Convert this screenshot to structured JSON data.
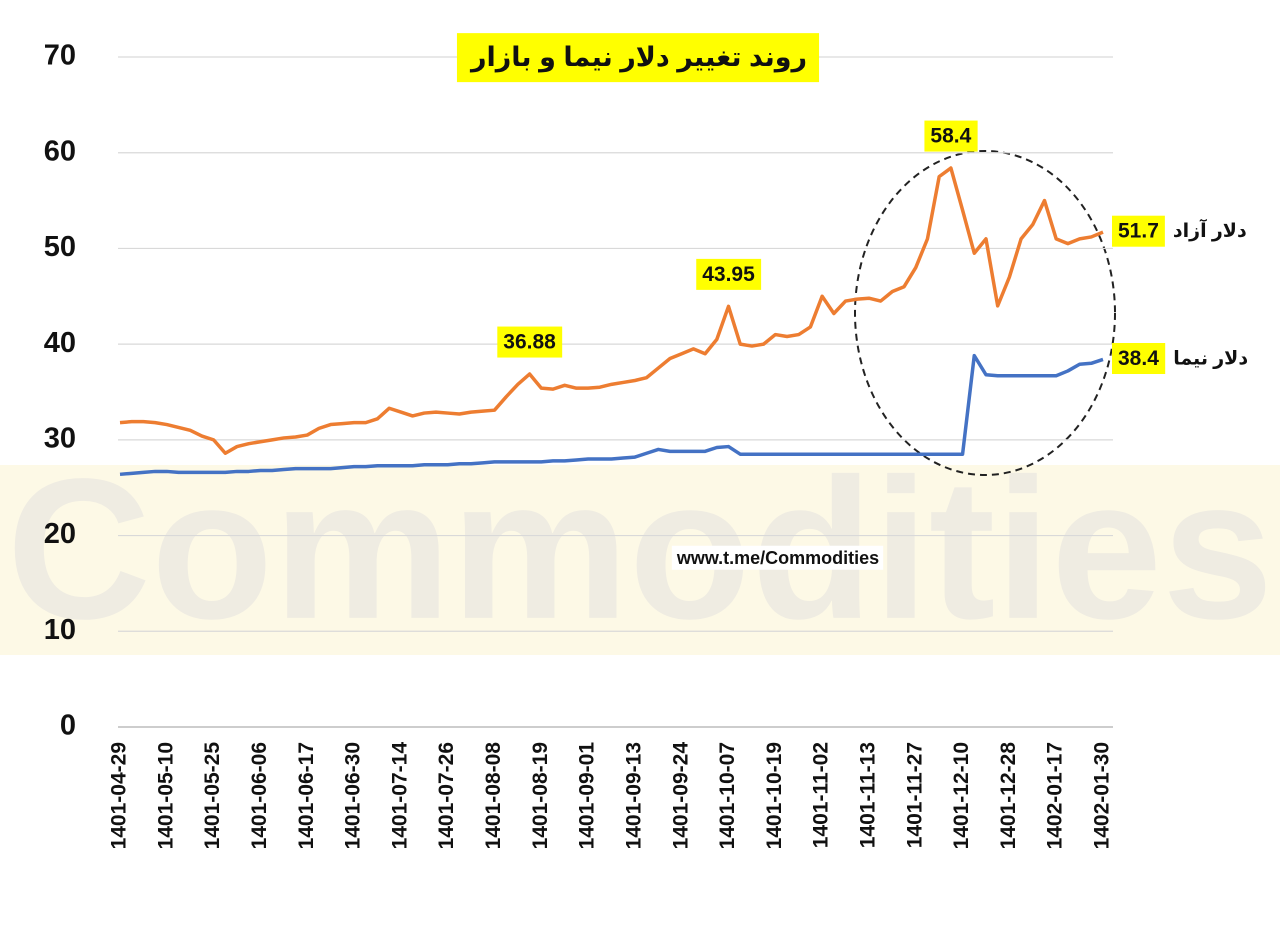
{
  "chart_data": {
    "type": "line",
    "title": "روند تغییر دلار نیما و بازار",
    "source": "www.t.me/Commodities",
    "watermark": "Commodities",
    "categories": [
      "1401-04-29",
      null,
      null,
      null,
      "1401-05-10",
      null,
      null,
      null,
      "1401-05-25",
      null,
      null,
      null,
      "1401-06-06",
      null,
      null,
      null,
      "1401-06-17",
      null,
      null,
      null,
      "1401-06-30",
      null,
      null,
      null,
      "1401-07-14",
      null,
      null,
      null,
      "1401-07-26",
      null,
      null,
      null,
      "1401-08-08",
      null,
      null,
      null,
      "1401-08-19",
      null,
      null,
      null,
      "1401-09-01",
      null,
      null,
      null,
      "1401-09-13",
      null,
      null,
      null,
      "1401-09-24",
      null,
      null,
      null,
      "1401-10-07",
      null,
      null,
      null,
      "1401-10-19",
      null,
      null,
      null,
      "1401-11-02",
      null,
      null,
      null,
      "1401-11-13",
      null,
      null,
      null,
      "1401-11-27",
      null,
      null,
      null,
      "1401-12-10",
      null,
      null,
      null,
      "1401-12-28",
      null,
      null,
      null,
      "1402-01-17",
      null,
      null,
      null,
      "1402-01-30"
    ],
    "series": [
      {
        "name": "دلار نیما",
        "color": "#4472c4",
        "values": [
          26.4,
          26.5,
          26.6,
          26.7,
          26.7,
          26.6,
          26.6,
          26.6,
          26.6,
          26.6,
          26.7,
          26.7,
          26.8,
          26.8,
          26.9,
          27.0,
          27.0,
          27.0,
          27.0,
          27.1,
          27.2,
          27.2,
          27.3,
          27.3,
          27.3,
          27.3,
          27.4,
          27.4,
          27.4,
          27.5,
          27.5,
          27.6,
          27.7,
          27.7,
          27.7,
          27.7,
          27.7,
          27.8,
          27.8,
          27.9,
          28.0,
          28.0,
          28.0,
          28.1,
          28.2,
          28.6,
          29.0,
          28.8,
          28.8,
          28.8,
          28.8,
          29.2,
          29.3,
          28.5,
          28.5,
          28.5,
          28.5,
          28.5,
          28.5,
          28.5,
          28.5,
          28.5,
          28.5,
          28.5,
          28.5,
          28.5,
          28.5,
          28.5,
          28.5,
          28.5,
          28.5,
          28.5,
          28.5,
          38.8,
          36.8,
          36.7,
          36.7,
          36.7,
          36.7,
          36.7,
          36.7,
          37.2,
          37.9,
          38.0,
          38.4
        ]
      },
      {
        "name": "دلار آزاد",
        "color": "#ed7d31",
        "values": [
          31.8,
          31.9,
          31.9,
          31.8,
          31.6,
          31.3,
          31.0,
          30.4,
          30.0,
          28.6,
          29.3,
          29.6,
          29.8,
          30.0,
          30.2,
          30.3,
          30.5,
          31.2,
          31.6,
          31.7,
          31.8,
          31.8,
          32.2,
          33.3,
          32.9,
          32.5,
          32.8,
          32.9,
          32.8,
          32.7,
          32.9,
          33.0,
          33.1,
          34.5,
          35.8,
          36.88,
          35.4,
          35.3,
          35.7,
          35.4,
          35.4,
          35.5,
          35.8,
          36.0,
          36.2,
          36.5,
          37.5,
          38.5,
          39.0,
          39.5,
          39.0,
          40.5,
          43.95,
          40.0,
          39.8,
          40.0,
          41.0,
          40.8,
          41.0,
          41.8,
          45.0,
          43.2,
          44.5,
          44.7,
          44.8,
          44.5,
          45.5,
          46.0,
          48.0,
          51.0,
          57.5,
          58.4,
          54.0,
          49.5,
          51.0,
          44.0,
          47.0,
          51.0,
          52.5,
          55.0,
          51.0,
          50.5,
          51.0,
          51.2,
          51.7
        ]
      }
    ],
    "ylim": [
      0,
      70
    ],
    "yticks": [
      0,
      10,
      20,
      30,
      40,
      50,
      60,
      70
    ],
    "grid": true
  }
}
